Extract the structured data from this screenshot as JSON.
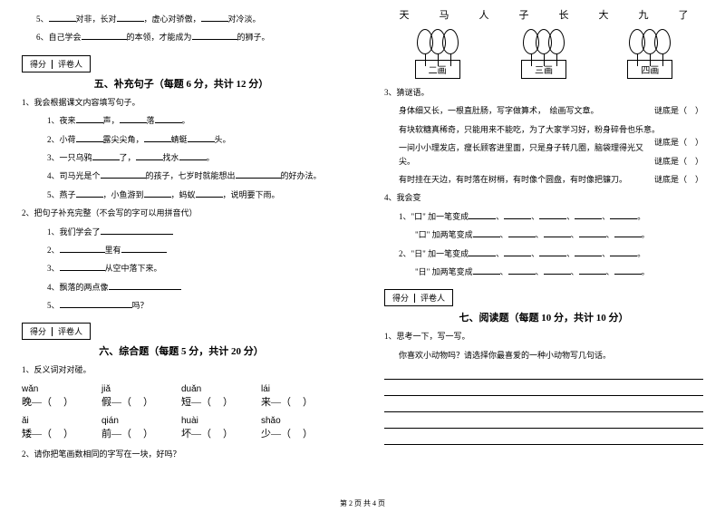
{
  "left": {
    "item5": {
      "prefix": "5、",
      "t1": "对非，长对",
      "t2": "，虚心对骄傲，",
      "t3": "对冷淡。"
    },
    "item6": {
      "prefix": "6、自己学会",
      "t1": "的本领，才能成为",
      "t2": "的狮子。"
    },
    "scoreLabel1": "得分",
    "scoreLabel2": "评卷人",
    "sec5": {
      "title": "五、补充句子（每题 6 分，共计 12 分）",
      "intro": "1、我会根据课文内容填写句子。",
      "q1": {
        "n": "1、夜来",
        "a": "声，",
        "b": "落",
        "c": "。"
      },
      "q2": {
        "n": "2、小荷",
        "a": "露尖尖角，",
        "b": "蜻蜓",
        "c": "头。"
      },
      "q3": {
        "n": "3、一只乌鸦",
        "a": "了，",
        "b": "找水",
        "c": "。"
      },
      "q4": {
        "n": "4、司马光是个",
        "a": "的孩子，七岁时就能想出",
        "b": "的好办法。"
      },
      "q5": {
        "n": "5、燕子",
        "a": "，小鱼游到",
        "b": "，蚂蚁",
        "c": "，说明要下雨。"
      },
      "intro2": "2、把句子补充完整（不会写的字可以用拼音代）",
      "s1": "1、我们学会了",
      "s2a": "2、",
      "s2b": "里有",
      "s3a": "3、",
      "s3b": "从空中落下来。",
      "s4": "4、飘落的两点像",
      "s5a": "5、",
      "s5b": "吗？"
    },
    "sec6": {
      "title": "六、综合题（每题 5 分，共计 20 分）",
      "intro": "1、反义词对对碰。",
      "row1": [
        {
          "py": "wǎn",
          "ch": "晚—（"
        },
        {
          "py": "jiǎ",
          "ch": "假—（"
        },
        {
          "py": "duǎn",
          "ch": "短—（"
        },
        {
          "py": "lái",
          "ch": "来—（"
        }
      ],
      "row2": [
        {
          "py": "ǎi",
          "ch": "矮—（"
        },
        {
          "py": "qián",
          "ch": "前—（"
        },
        {
          "py": "huài",
          "ch": "坏—（"
        },
        {
          "py": "shǎo",
          "ch": "少—（"
        }
      ],
      "paren": "）",
      "q2": "2、请你把笔画数相同的字写在一块，好吗？"
    }
  },
  "right": {
    "chars": [
      "天",
      "马",
      "人",
      "子",
      "长",
      "大",
      "九",
      "了"
    ],
    "labels": [
      "二画",
      "三画",
      "四画"
    ],
    "q3": {
      "title": "3、猜谜语。",
      "l1": "身体细又长，一根直肚肠，写字做算术，　绘画写文章。",
      "l2": "有块软糖真稀奇，只能用来不能吃，为了大家学习好，粉身碎骨也乐意。",
      "l3": "一间小小理发店，瘦长顾客进里面，只是身子转几圈，脑袋理得光又尖。",
      "l4": "有时挂在天边，有时落在树梢，有时像个圆盘，有时像把镰刀。",
      "ans": "谜底是（　）"
    },
    "q4": {
      "title": "4、我会变",
      "l1a": "1、\"口\" 加一笔变成",
      "l1b": "。",
      "l2a": "　　\"口\" 加两笔变成",
      "l2b": "。",
      "l3a": "2、\"日\" 加一笔变成",
      "l3b": "。",
      "l4a": "　　\"日\" 加两笔变成",
      "l4b": "。"
    },
    "scoreLabel1": "得分",
    "scoreLabel2": "评卷人",
    "sec7": {
      "title": "七、阅读题（每题 10 分，共计 10 分）",
      "q1": "1、思考一下，写一写。",
      "q1b": "你喜欢小动物吗？请选择你最喜爱的一种小动物写几句话。"
    }
  },
  "footer": "第 2 页 共 4 页"
}
